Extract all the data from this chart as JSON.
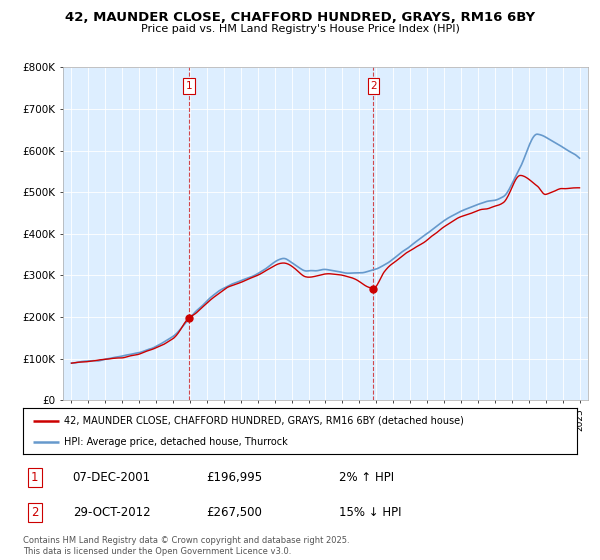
{
  "title": "42, MAUNDER CLOSE, CHAFFORD HUNDRED, GRAYS, RM16 6BY",
  "subtitle": "Price paid vs. HM Land Registry's House Price Index (HPI)",
  "ylabel_ticks": [
    "£0",
    "£100K",
    "£200K",
    "£300K",
    "£400K",
    "£500K",
    "£600K",
    "£700K",
    "£800K"
  ],
  "ytick_vals": [
    0,
    100000,
    200000,
    300000,
    400000,
    500000,
    600000,
    700000,
    800000
  ],
  "ylim": [
    0,
    800000
  ],
  "sale1_date": "07-DEC-2001",
  "sale1_price": 196995,
  "sale1_hpi": "2% ↑ HPI",
  "sale1_year": 2001.92,
  "sale2_date": "29-OCT-2012",
  "sale2_price": 267500,
  "sale2_hpi": "15% ↓ HPI",
  "sale2_year": 2012.83,
  "legend_label_red": "42, MAUNDER CLOSE, CHAFFORD HUNDRED, GRAYS, RM16 6BY (detached house)",
  "legend_label_blue": "HPI: Average price, detached house, Thurrock",
  "footer": "Contains HM Land Registry data © Crown copyright and database right 2025.\nThis data is licensed under the Open Government Licence v3.0.",
  "red_color": "#cc0000",
  "blue_color": "#6699cc",
  "vline_color": "#cc0000",
  "bg_color": "#ddeeff",
  "plot_bg": "#ffffff",
  "hpi_waypoints": [
    [
      1995.0,
      90000
    ],
    [
      1997.0,
      100000
    ],
    [
      1999.0,
      115000
    ],
    [
      2001.0,
      155000
    ],
    [
      2002.5,
      220000
    ],
    [
      2004.0,
      270000
    ],
    [
      2006.0,
      305000
    ],
    [
      2007.5,
      340000
    ],
    [
      2009.0,
      310000
    ],
    [
      2010.0,
      315000
    ],
    [
      2011.5,
      305000
    ],
    [
      2013.0,
      315000
    ],
    [
      2014.5,
      355000
    ],
    [
      2016.0,
      400000
    ],
    [
      2017.5,
      445000
    ],
    [
      2019.0,
      470000
    ],
    [
      2020.5,
      490000
    ],
    [
      2021.5,
      560000
    ],
    [
      2022.5,
      640000
    ],
    [
      2023.5,
      620000
    ],
    [
      2024.5,
      595000
    ],
    [
      2025.0,
      580000
    ]
  ],
  "red_waypoints": [
    [
      1995.0,
      90000
    ],
    [
      1997.0,
      98000
    ],
    [
      1999.0,
      112000
    ],
    [
      2001.0,
      150000
    ],
    [
      2001.92,
      196995
    ],
    [
      2002.5,
      215000
    ],
    [
      2004.0,
      265000
    ],
    [
      2006.0,
      300000
    ],
    [
      2007.5,
      330000
    ],
    [
      2009.0,
      295000
    ],
    [
      2010.0,
      305000
    ],
    [
      2011.5,
      295000
    ],
    [
      2012.83,
      267500
    ],
    [
      2013.5,
      310000
    ],
    [
      2014.5,
      345000
    ],
    [
      2016.0,
      385000
    ],
    [
      2017.5,
      430000
    ],
    [
      2019.0,
      455000
    ],
    [
      2020.5,
      475000
    ],
    [
      2021.5,
      540000
    ],
    [
      2022.5,
      515000
    ],
    [
      2023.0,
      495000
    ],
    [
      2024.0,
      510000
    ],
    [
      2025.0,
      510000
    ]
  ]
}
